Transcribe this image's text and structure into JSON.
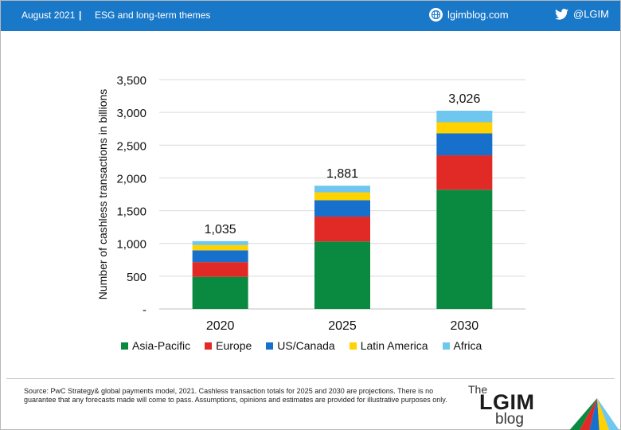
{
  "header": {
    "date": "August 2021",
    "separator": "|",
    "theme": "ESG and long-term themes",
    "site": "lgimblog.com",
    "twitter": "@LGIM"
  },
  "colors": {
    "header_bg": "#1a78c8",
    "asia_pacific": "#0a8a41",
    "europe": "#e12a25",
    "us_canada": "#1670cc",
    "latin_america": "#ffd200",
    "africa": "#6fc6ee"
  },
  "icons": {
    "site": "globe-icon",
    "twitter": "twitter-bird-icon",
    "logo": "umbrella-icon"
  },
  "chart_data": {
    "type": "bar",
    "stacked": true,
    "categories": [
      "2020",
      "2025",
      "2030"
    ],
    "series": [
      {
        "name": "Asia-Pacific",
        "values": [
          490,
          1030,
          1820
        ]
      },
      {
        "name": "Europe",
        "values": [
          225,
          380,
          525
        ]
      },
      {
        "name": "US/Canada",
        "values": [
          180,
          250,
          335
        ]
      },
      {
        "name": "Latin America",
        "values": [
          80,
          120,
          170
        ]
      },
      {
        "name": "Africa",
        "values": [
          60,
          101,
          176
        ]
      }
    ],
    "totals": [
      "1,035",
      "1,881",
      "3,026"
    ],
    "ylabel": "Number of cashless transactions in billions",
    "xlabel": "",
    "ylim": [
      0,
      3500
    ],
    "yticks": [
      0,
      500,
      1000,
      1500,
      2000,
      2500,
      3000,
      3500
    ],
    "ytick_labels": [
      "-",
      "500",
      "1,000",
      "1,500",
      "2,000",
      "2,500",
      "3,000",
      "3,500"
    ],
    "grid": true,
    "legend_position": "bottom"
  },
  "footer": {
    "source_text": "Source: PwC Strategy& global payments model, 2021. Cashless transaction totals for 2025 and 2030 are projections. There is no guarantee that any forecasts made will come to pass. Assumptions, opinions and estimates are provided for illustrative purposes only.",
    "logo_the": "The",
    "logo_main": "LGIM",
    "logo_blog": "blog"
  }
}
